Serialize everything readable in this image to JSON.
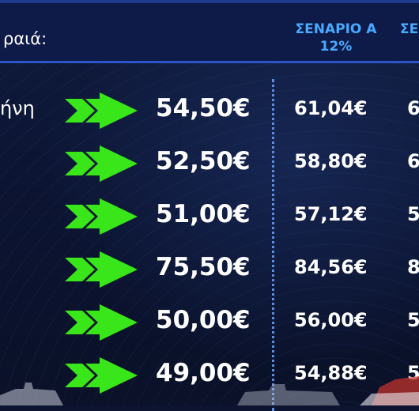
{
  "header": {
    "title": "ραιά:",
    "scenario_a": "ΣΕΝΑΡΙΟ Α",
    "scenario_a_pct": "12%",
    "scenario_b": "ΣΕ"
  },
  "rows": [
    {
      "label": "ήνη",
      "price": "54,50€",
      "scenario_a": "61,04€",
      "scenario_b": "6"
    },
    {
      "label": "",
      "price": "52,50€",
      "scenario_a": "58,80€",
      "scenario_b": "6"
    },
    {
      "label": "",
      "price": "51,00€",
      "scenario_a": "57,12€",
      "scenario_b": "5"
    },
    {
      "label": "",
      "price": "75,50€",
      "scenario_a": "84,56€",
      "scenario_b": "8"
    },
    {
      "label": "",
      "price": "50,00€",
      "scenario_a": "56,00€",
      "scenario_b": "5"
    },
    {
      "label": "",
      "price": "49,00€",
      "scenario_a": "54,88€",
      "scenario_b": "5"
    }
  ],
  "colors": {
    "arrow": "#39e619",
    "accent": "#4aa9ff",
    "header_bg": "#0e1a47"
  }
}
